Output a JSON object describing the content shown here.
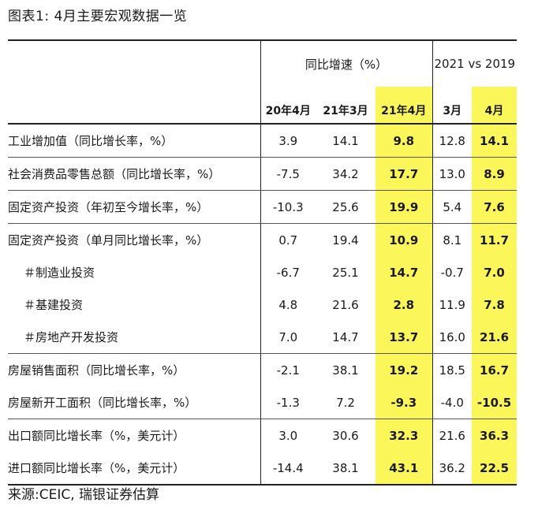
{
  "title": "图表1: 4月主要宏观数据一览",
  "source": "来源:CEIC, 瑞银证券估算",
  "header": {
    "group1": "同比增速（%）",
    "group2": "2021 vs 2019",
    "columns": [
      "20年4月",
      "21年3月",
      "21年4月",
      "3月",
      "4月"
    ]
  },
  "highlight_color": "#fbf659",
  "rows": [
    {
      "label": "工业增加值（同比增长率，%）",
      "v": [
        "3.9",
        "14.1",
        "9.8",
        "12.8",
        "14.1"
      ]
    },
    {
      "label": "社会消费品零售总额（同比增长率，%）",
      "v": [
        "-7.5",
        "34.2",
        "17.7",
        "13.0",
        "8.9"
      ]
    },
    {
      "label": "固定资产投资（年初至今增长率，%）",
      "v": [
        "-10.3",
        "25.6",
        "19.9",
        "5.4",
        "7.6"
      ]
    },
    {
      "label": "固定资产投资（单月同比增长率，%）",
      "v": [
        "0.7",
        "19.4",
        "10.9",
        "8.1",
        "11.7"
      ]
    },
    {
      "label": "＃制造业投资",
      "v": [
        "-6.7",
        "25.1",
        "14.7",
        "-0.7",
        "7.0"
      ]
    },
    {
      "label": "＃基建投资",
      "v": [
        "4.8",
        "21.6",
        "2.8",
        "11.9",
        "7.8"
      ]
    },
    {
      "label": "＃房地产开发投资",
      "v": [
        "7.0",
        "14.7",
        "13.7",
        "16.0",
        "21.6"
      ]
    },
    {
      "label": "房屋销售面积（同比增长率，%）",
      "v": [
        "-2.1",
        "38.1",
        "19.2",
        "18.5",
        "16.7"
      ]
    },
    {
      "label": "房屋新开工面积（同比增长率，%）",
      "v": [
        "-1.3",
        "7.2",
        "-9.3",
        "-4.0",
        "-10.5"
      ]
    },
    {
      "label": "出口额同比增长率（%，美元计）",
      "v": [
        "3.0",
        "30.6",
        "32.3",
        "21.6",
        "36.3"
      ]
    },
    {
      "label": "进口额同比增长率（%，美元计）",
      "v": [
        "-14.4",
        "38.1",
        "43.1",
        "36.2",
        "22.5"
      ]
    }
  ]
}
